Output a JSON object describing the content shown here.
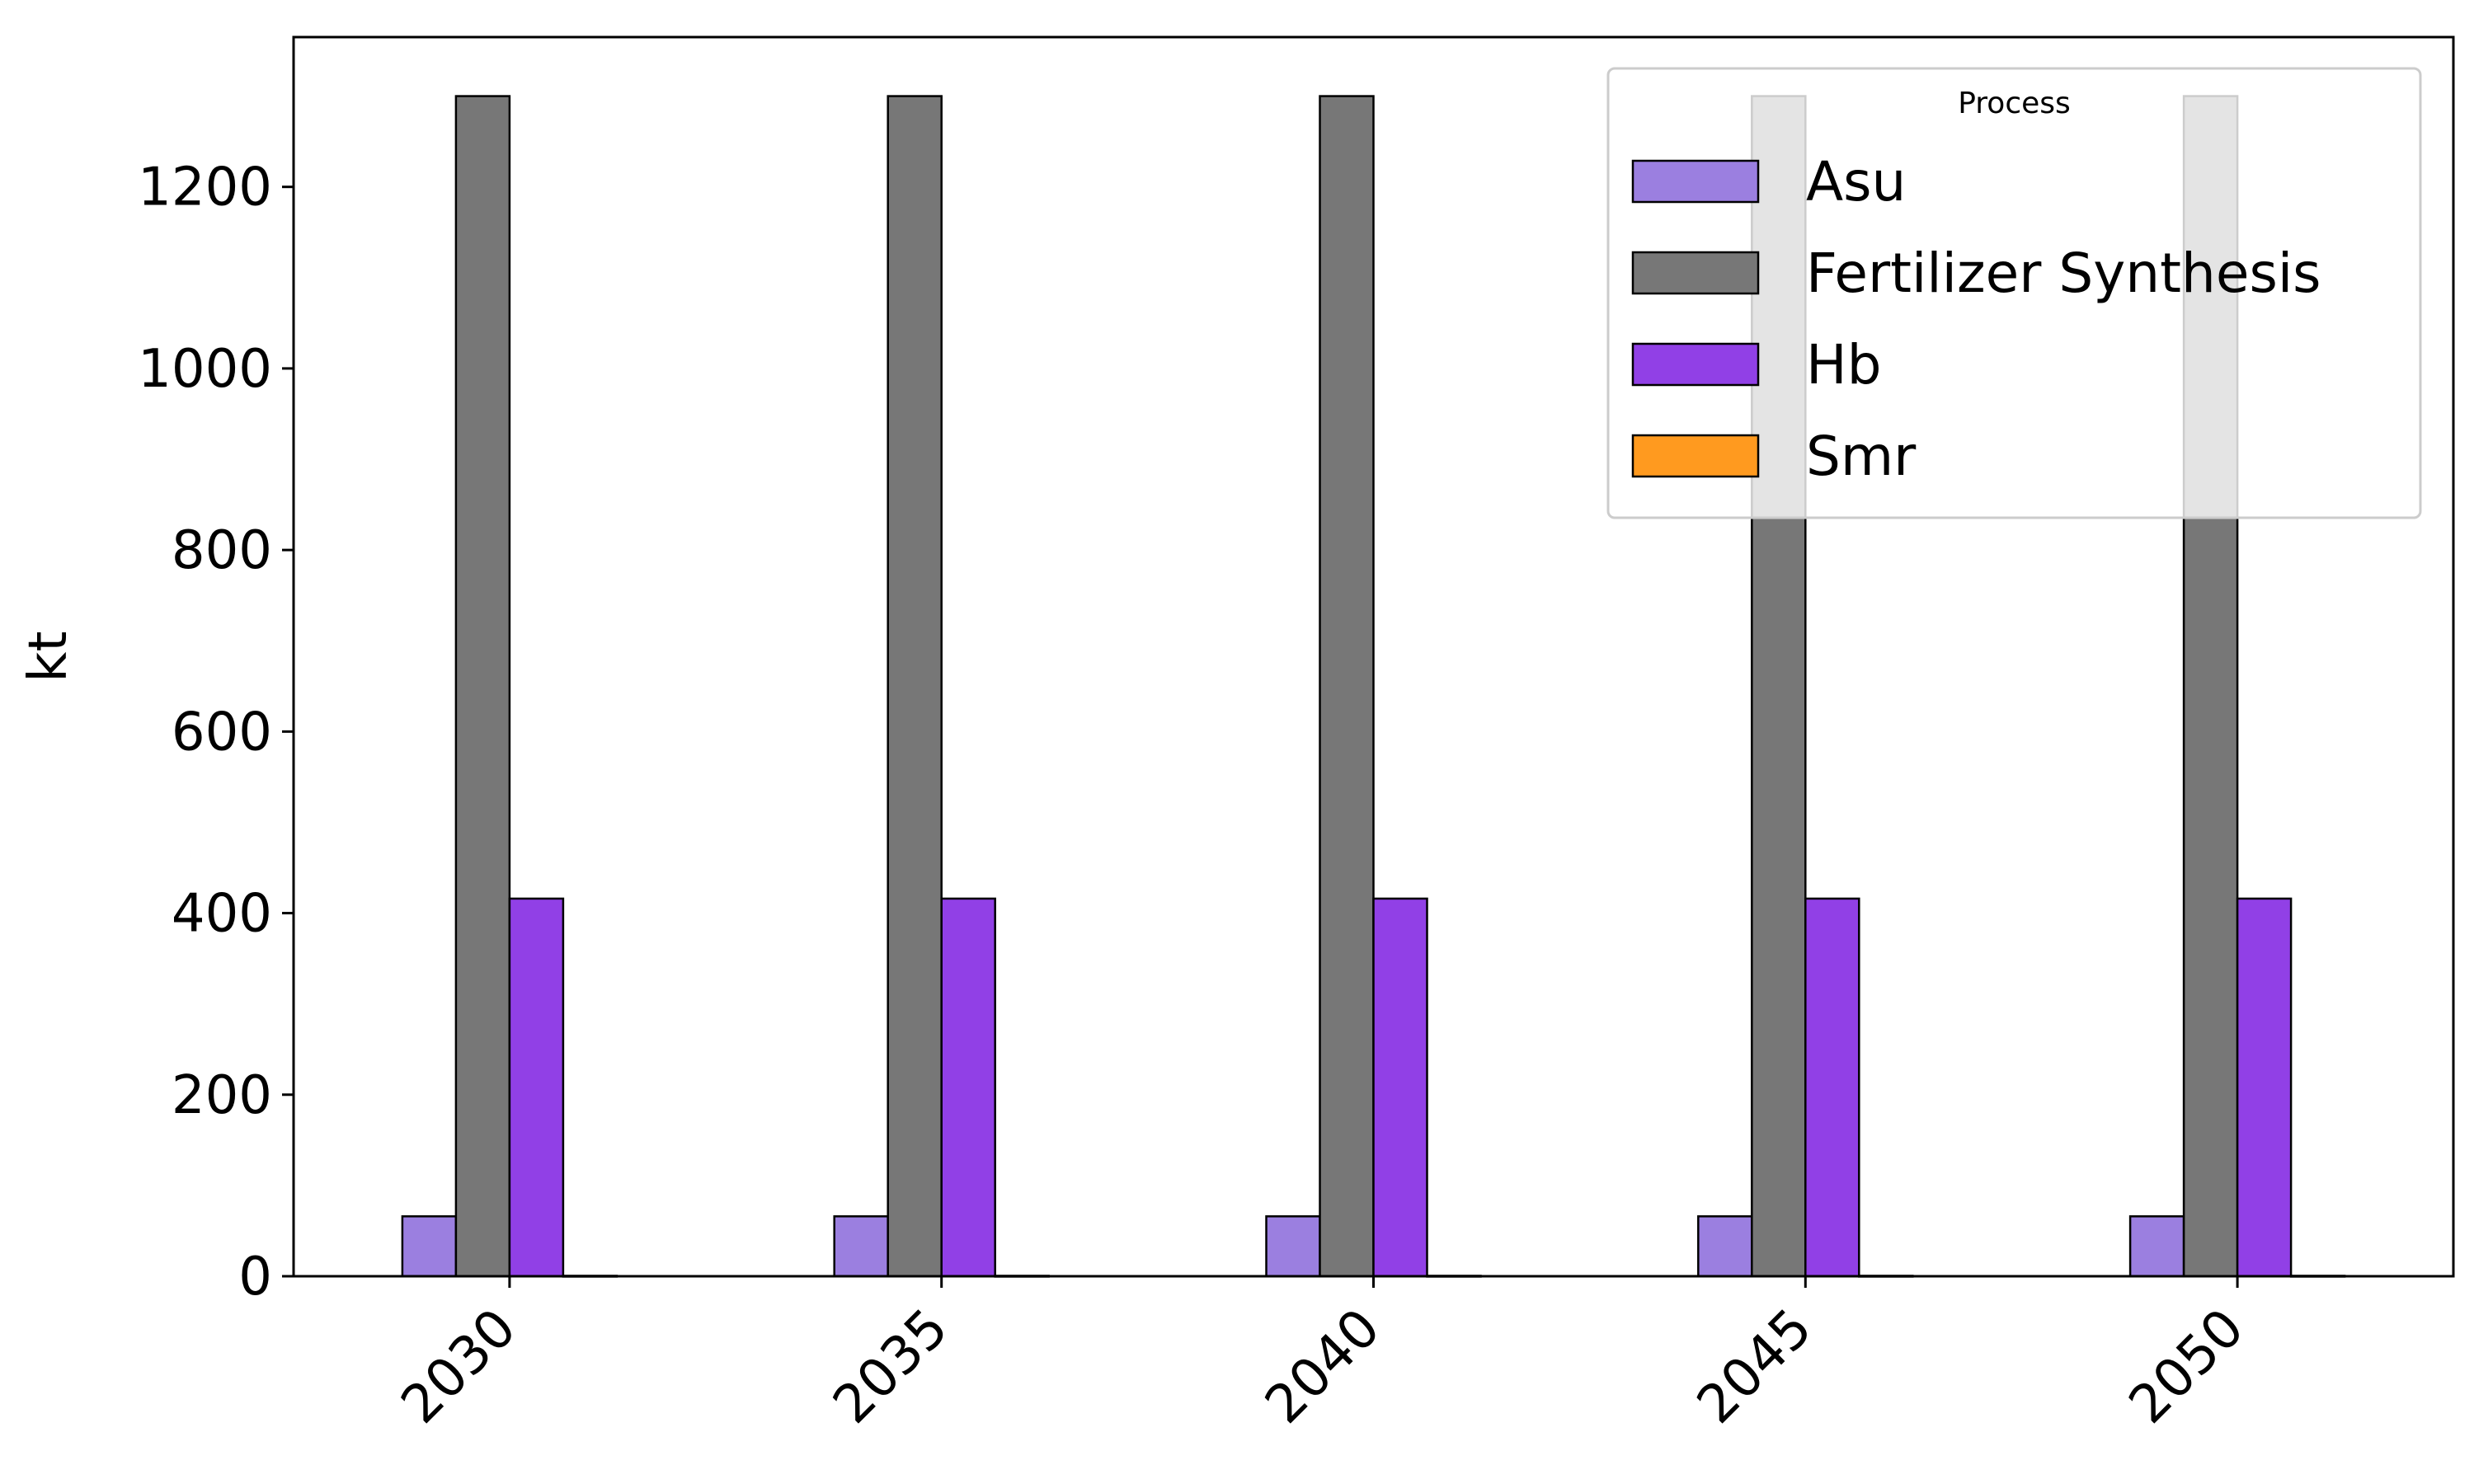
{
  "chart_data": {
    "type": "bar",
    "title": "",
    "xlabel": "",
    "ylabel": "kt",
    "categories": [
      "2030",
      "2035",
      "2040",
      "2045",
      "2050"
    ],
    "ylim": [
      0,
      1365
    ],
    "yticks": [
      0,
      200,
      400,
      600,
      800,
      1000,
      1200
    ],
    "grid": false,
    "legend": {
      "title": "Process",
      "placement": "top-right"
    },
    "series": [
      {
        "name": "Asu",
        "color": "#9b7fe0",
        "values": [
          66,
          66,
          66,
          66,
          66
        ]
      },
      {
        "name": "Fertilizer Synthesis",
        "color": "#777777",
        "values": [
          1300,
          1300,
          1300,
          1300,
          1300
        ]
      },
      {
        "name": "Hb",
        "color": "#9140e6",
        "values": [
          416,
          416,
          416,
          416,
          416
        ]
      },
      {
        "name": "Smr",
        "color": "#ff9a1f",
        "values": [
          0.5,
          0.5,
          0.5,
          0.5,
          0.5
        ]
      }
    ]
  }
}
